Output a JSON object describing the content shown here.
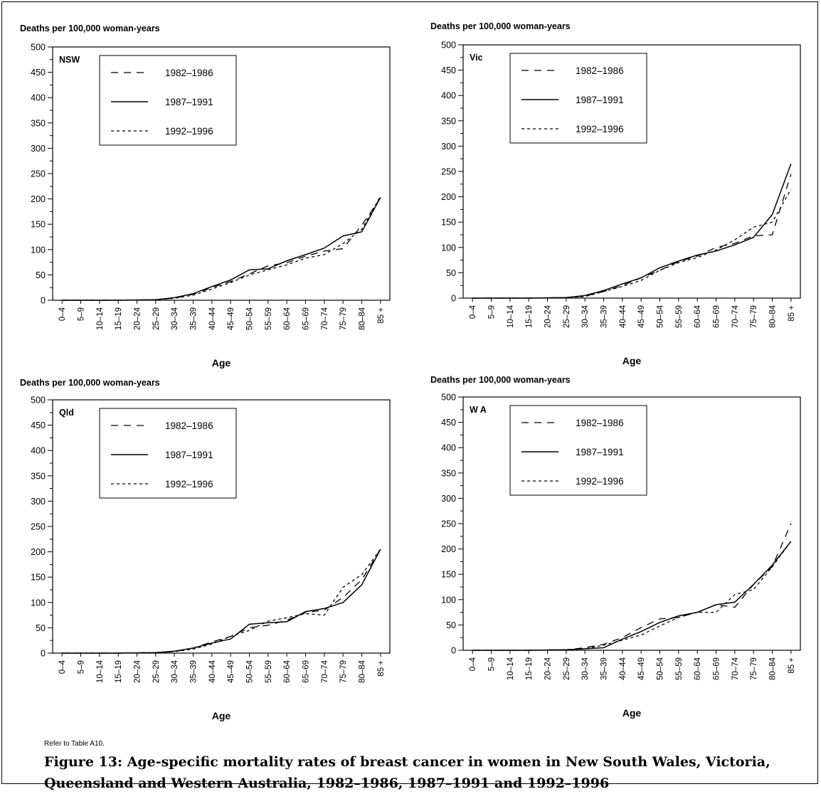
{
  "figure": {
    "note": "Refer to Table A10.",
    "caption_line1": "Figure 13: Age-specific mortality rates of breast cancer in women in New South Wales, Victoria,",
    "caption_line2": "Queensland and Western Australia, 1982–1986, 1987–1991 and 1992–1996"
  },
  "chart_data": [
    {
      "type": "line",
      "panel_label": "NSW",
      "ylabel": "Deaths  per 100,000 woman-years",
      "xlabel": "Age",
      "categories": [
        "0–4",
        "5–9",
        "10–14",
        "15–19",
        "20–24",
        "25–29",
        "30–34",
        "35–39",
        "40–44",
        "45–49",
        "50–54",
        "55–59",
        "60–64",
        "65–69",
        "70–74",
        "75–79",
        "80–84",
        "85 +"
      ],
      "yticks": [
        "0",
        "50",
        "100",
        "150",
        "200",
        "250",
        "300",
        "350",
        "400",
        "450",
        "500"
      ],
      "ylim": [
        0,
        500
      ],
      "legend_position": "top-left",
      "series": [
        {
          "name": "1982–1986",
          "style": "dashed",
          "values": [
            0,
            0,
            0,
            0,
            0.5,
            1,
            4,
            12,
            25,
            37,
            52,
            68,
            74,
            87,
            97,
            102,
            148,
            202
          ]
        },
        {
          "name": "1987–1991",
          "style": "solid",
          "values": [
            0,
            0,
            0,
            0,
            0.5,
            1,
            5,
            13,
            27,
            40,
            60,
            62,
            78,
            90,
            103,
            127,
            135,
            203
          ]
        },
        {
          "name": "1992–1996",
          "style": "dotted",
          "values": [
            0,
            0,
            0,
            0,
            0.5,
            1,
            4,
            10,
            22,
            35,
            50,
            60,
            70,
            83,
            90,
            112,
            140,
            205
          ]
        }
      ]
    },
    {
      "type": "line",
      "panel_label": "Vic",
      "ylabel": "Deaths per 100,000 woman-years",
      "xlabel": "Age",
      "categories": [
        "0–4",
        "5–9",
        "10–14",
        "15–19",
        "20–24",
        "25–29",
        "30–34",
        "35–39",
        "40–44",
        "45–49",
        "50–54",
        "55–59",
        "60–64",
        "65–69",
        "70–74",
        "75–79",
        "80–84",
        "85 +"
      ],
      "yticks": [
        "0",
        "50",
        "100",
        "150",
        "200",
        "250",
        "300",
        "350",
        "400",
        "450",
        "500"
      ],
      "ylim": [
        0,
        500
      ],
      "legend_position": "top-left",
      "series": [
        {
          "name": "1982–1986",
          "style": "dashed",
          "values": [
            0,
            0,
            0,
            0,
            0.5,
            1,
            4,
            13,
            25,
            40,
            55,
            72,
            83,
            100,
            108,
            123,
            125,
            245
          ]
        },
        {
          "name": "1987–1991",
          "style": "solid",
          "values": [
            0,
            0,
            0,
            0,
            0.5,
            1,
            5,
            15,
            28,
            40,
            60,
            73,
            85,
            93,
            105,
            120,
            165,
            265
          ]
        },
        {
          "name": "1992–1996",
          "style": "dotted",
          "values": [
            0,
            0,
            0,
            0,
            0.5,
            1,
            3,
            13,
            23,
            35,
            55,
            70,
            80,
            95,
            115,
            140,
            150,
            215
          ]
        }
      ]
    },
    {
      "type": "line",
      "panel_label": "Qld",
      "ylabel": "Deaths per 100,000 woman-years",
      "xlabel": "Age",
      "categories": [
        "0–4",
        "5–9",
        "10–14",
        "15–19",
        "20–24",
        "25–29",
        "30–34",
        "35–39",
        "40–44",
        "45–49",
        "50–54",
        "55–59",
        "60–64",
        "65–69",
        "70–74",
        "75–79",
        "80–84",
        "85 +"
      ],
      "yticks": [
        "0",
        "50",
        "100",
        "150",
        "200",
        "250",
        "300",
        "350",
        "400",
        "450",
        "500"
      ],
      "ylim": [
        0,
        500
      ],
      "legend_position": "top-left",
      "series": [
        {
          "name": "1982–1986",
          "style": "dashed",
          "values": [
            0,
            0,
            0,
            0,
            0.5,
            1,
            3,
            10,
            22,
            33,
            50,
            55,
            65,
            80,
            85,
            110,
            145,
            205
          ]
        },
        {
          "name": "1987–1991",
          "style": "solid",
          "values": [
            0,
            0,
            0,
            0,
            0.5,
            1,
            4,
            10,
            20,
            28,
            57,
            60,
            62,
            82,
            88,
            100,
            135,
            205
          ]
        },
        {
          "name": "1992–1996",
          "style": "dotted",
          "values": [
            0,
            0,
            0,
            0,
            0.5,
            1,
            3,
            8,
            18,
            33,
            45,
            63,
            70,
            78,
            75,
            130,
            155,
            205
          ]
        }
      ]
    },
    {
      "type": "line",
      "panel_label": "W A",
      "ylabel": "Deaths per 100,000 woman-years",
      "xlabel": "Age",
      "categories": [
        "0–4",
        "5–9",
        "10–14",
        "15–19",
        "20–24",
        "25–29",
        "30–34",
        "35–39",
        "40–44",
        "45–49",
        "50–54",
        "55–59",
        "60–64",
        "65–69",
        "70–74",
        "75–79",
        "80–84",
        "85 +"
      ],
      "yticks": [
        "0",
        "50",
        "100",
        "150",
        "200",
        "250",
        "300",
        "350",
        "400",
        "450",
        "500"
      ],
      "ylim": [
        0,
        500
      ],
      "legend_position": "top-left",
      "series": [
        {
          "name": "1982–1986",
          "style": "dashed",
          "values": [
            0,
            0,
            0,
            0,
            0.5,
            1,
            5,
            12,
            25,
            45,
            62,
            65,
            75,
            90,
            85,
            130,
            165,
            250
          ]
        },
        {
          "name": "1987–1991",
          "style": "solid",
          "values": [
            0,
            0,
            0,
            0,
            0.5,
            1,
            3,
            5,
            22,
            37,
            55,
            68,
            75,
            90,
            95,
            130,
            168,
            215
          ]
        },
        {
          "name": "1992–1996",
          "style": "dotted",
          "values": [
            0,
            0,
            0,
            0,
            0.5,
            1,
            3,
            10,
            20,
            30,
            48,
            65,
            75,
            75,
            110,
            120,
            165,
            215
          ]
        }
      ]
    }
  ]
}
